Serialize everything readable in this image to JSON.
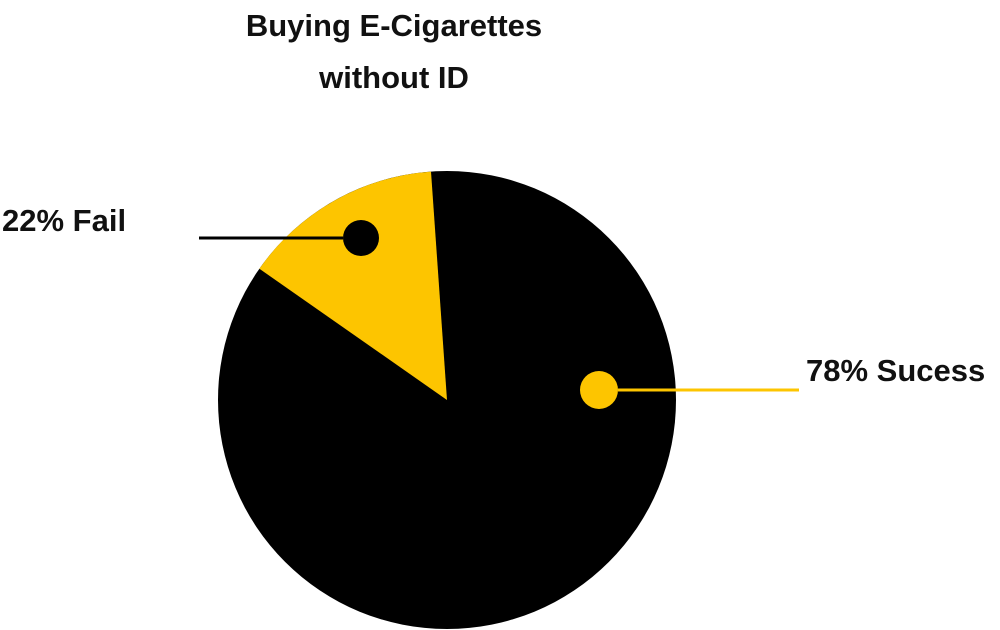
{
  "chart_data": {
    "type": "pie",
    "title_lines": [
      "Buying E-Cigarettes",
      "without ID"
    ],
    "slices": [
      {
        "label": "Fail",
        "value": 22,
        "color": "#FDC500",
        "callout_text": "22% Fail",
        "marker_color": "#000000"
      },
      {
        "label": "Sucess",
        "value": 78,
        "color": "#000000",
        "callout_text": "78% Sucess",
        "marker_color": "#FDC500"
      }
    ],
    "legend": "none",
    "grid": false
  }
}
